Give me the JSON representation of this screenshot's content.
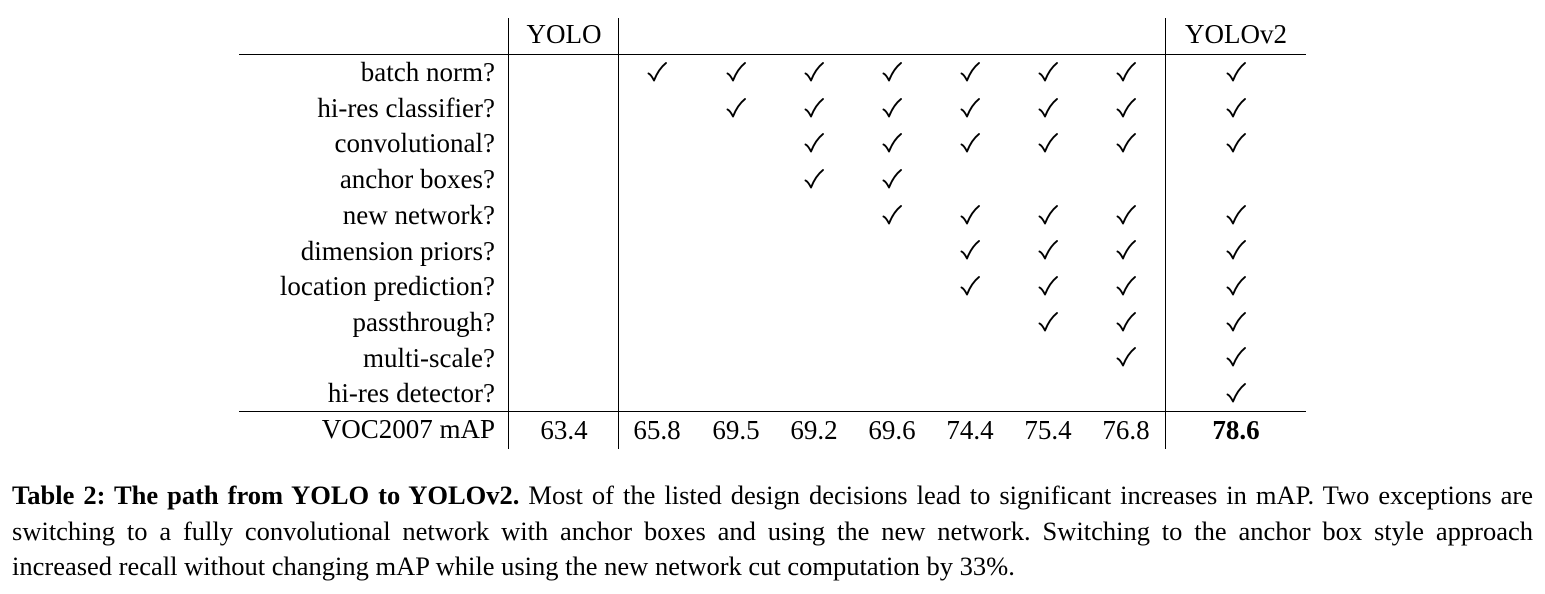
{
  "table": {
    "header": {
      "first": "YOLO",
      "last": "YOLOv2"
    },
    "rows": [
      {
        "label": "batch norm?",
        "checks": [
          false,
          true,
          true,
          true,
          true,
          true,
          true,
          true,
          true
        ]
      },
      {
        "label": "hi-res classifier?",
        "checks": [
          false,
          false,
          true,
          true,
          true,
          true,
          true,
          true,
          true
        ]
      },
      {
        "label": "convolutional?",
        "checks": [
          false,
          false,
          false,
          true,
          true,
          true,
          true,
          true,
          true
        ]
      },
      {
        "label": "anchor boxes?",
        "checks": [
          false,
          false,
          false,
          true,
          true,
          false,
          false,
          false,
          false
        ]
      },
      {
        "label": "new network?",
        "checks": [
          false,
          false,
          false,
          false,
          true,
          true,
          true,
          true,
          true
        ]
      },
      {
        "label": "dimension priors?",
        "checks": [
          false,
          false,
          false,
          false,
          false,
          true,
          true,
          true,
          true
        ]
      },
      {
        "label": "location prediction?",
        "checks": [
          false,
          false,
          false,
          false,
          false,
          true,
          true,
          true,
          true
        ]
      },
      {
        "label": "passthrough?",
        "checks": [
          false,
          false,
          false,
          false,
          false,
          false,
          true,
          true,
          true
        ]
      },
      {
        "label": "multi-scale?",
        "checks": [
          false,
          false,
          false,
          false,
          false,
          false,
          false,
          true,
          true
        ]
      },
      {
        "label": "hi-res detector?",
        "checks": [
          false,
          false,
          false,
          false,
          false,
          false,
          false,
          false,
          true
        ]
      }
    ],
    "map_row": {
      "label": "VOC2007 mAP",
      "values": [
        "63.4",
        "65.8",
        "69.5",
        "69.2",
        "69.6",
        "74.4",
        "75.4",
        "76.8",
        "78.6"
      ]
    },
    "check_glyph": "check-mark-icon"
  },
  "caption": {
    "title": "Table 2: The path from YOLO to YOLOv2.",
    "body": " Most of the listed design decisions lead to significant increases in mAP. Two exceptions are switching to a fully convolutional network with anchor boxes and using the new network. Switching to the anchor box style approach increased recall without changing mAP while using the new network cut computation by 33%."
  }
}
